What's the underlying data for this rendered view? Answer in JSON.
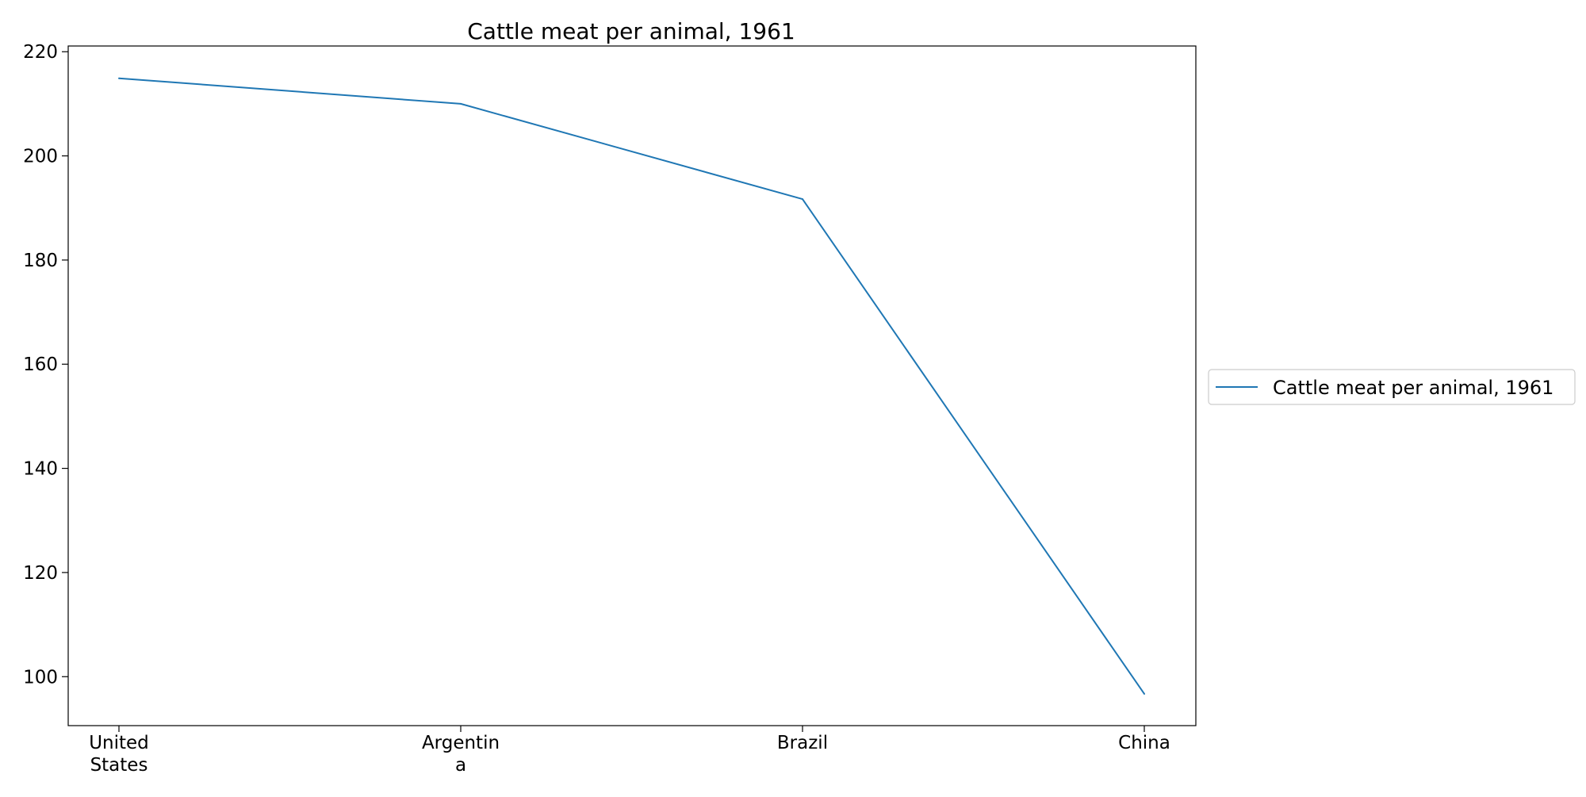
{
  "chart_data": {
    "type": "line",
    "title": "Cattle meat per animal, 1961",
    "xlabel": "",
    "ylabel": "",
    "categories": [
      [
        "United",
        "States"
      ],
      [
        "Argentin",
        "a"
      ],
      [
        "Brazil"
      ],
      [
        "China"
      ]
    ],
    "series": [
      {
        "name": "Cattle meat per animal, 1961",
        "color": "#1f77b4",
        "values": [
          214.9,
          210.0,
          191.7,
          96.7
        ]
      }
    ],
    "ylim": [
      90.6,
      221.1
    ],
    "yticks": [
      100,
      120,
      140,
      160,
      180,
      200,
      220
    ],
    "grid": false,
    "legend_position": "right"
  }
}
